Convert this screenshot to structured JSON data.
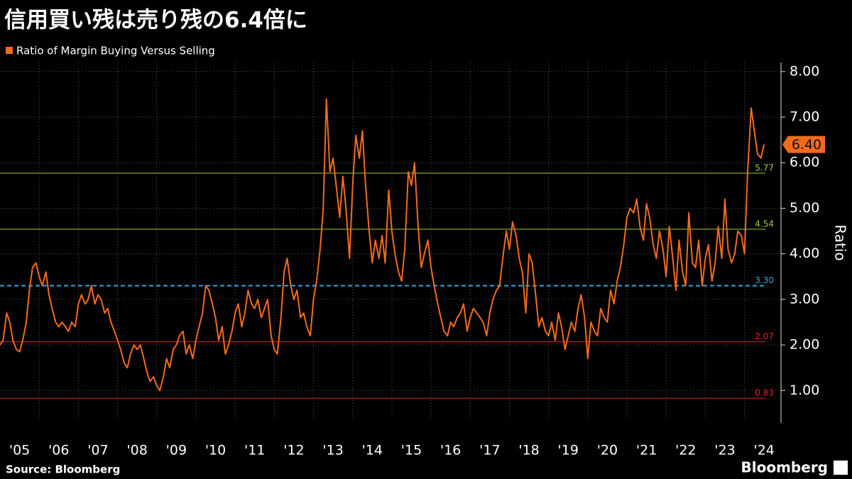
{
  "chart_data": {
    "type": "line",
    "title": "信用買い残は売り残の6.4倍に",
    "y_axis_label": "Ratio",
    "source": "Source: Bloomberg",
    "brand": "Bloomberg",
    "xlim": [
      2005,
      2024.75
    ],
    "xticks": [
      {
        "value": 2005,
        "label": "'05"
      },
      {
        "value": 2006,
        "label": "'06"
      },
      {
        "value": 2007,
        "label": "'07"
      },
      {
        "value": 2008,
        "label": "'08"
      },
      {
        "value": 2009,
        "label": "'09"
      },
      {
        "value": 2010,
        "label": "'10"
      },
      {
        "value": 2011,
        "label": "'11"
      },
      {
        "value": 2012,
        "label": "'12"
      },
      {
        "value": 2013,
        "label": "'13"
      },
      {
        "value": 2014,
        "label": "'14"
      },
      {
        "value": 2015,
        "label": "'15"
      },
      {
        "value": 2016,
        "label": "'16"
      },
      {
        "value": 2017,
        "label": "'17"
      },
      {
        "value": 2018,
        "label": "'18"
      },
      {
        "value": 2019,
        "label": "'19"
      },
      {
        "value": 2020,
        "label": "'20"
      },
      {
        "value": 2021,
        "label": "'21"
      },
      {
        "value": 2022,
        "label": "'22"
      },
      {
        "value": 2023,
        "label": "'23"
      },
      {
        "value": 2024,
        "label": "'24"
      }
    ],
    "ylim": [
      0.35,
      8.2
    ],
    "yticks": [
      {
        "value": 1,
        "label": "1.00"
      },
      {
        "value": 2,
        "label": "2.00"
      },
      {
        "value": 3,
        "label": "3.00"
      },
      {
        "value": 4,
        "label": "4.00"
      },
      {
        "value": 5,
        "label": "5.00"
      },
      {
        "value": 6,
        "label": "6.00"
      },
      {
        "value": 7,
        "label": "7.00"
      },
      {
        "value": 8,
        "label": "8.00"
      }
    ],
    "grid": true,
    "reference_lines": [
      {
        "value": 5.77,
        "label": "5.77",
        "color": "#9bd13b",
        "dashed": false
      },
      {
        "value": 4.54,
        "label": "4.54",
        "color": "#9bd13b",
        "dashed": false
      },
      {
        "value": 3.3,
        "label": "3.30",
        "color": "#29a9e0",
        "dashed": true
      },
      {
        "value": 2.07,
        "label": "2.07",
        "color": "#e0202a",
        "dashed": false
      },
      {
        "value": 0.83,
        "label": "0.83",
        "color": "#e0202a",
        "dashed": false
      }
    ],
    "last_value": {
      "value": 6.4,
      "label": "6.40"
    },
    "series": [
      {
        "name": "Ratio of Margin Buying Versus Selling",
        "color": "#f26b1d",
        "x": [
          2005,
          2005.08,
          2005.17,
          2005.25,
          2005.33,
          2005.42,
          2005.5,
          2005.58,
          2005.67,
          2005.75,
          2005.83,
          2005.92,
          2006,
          2006.08,
          2006.17,
          2006.25,
          2006.33,
          2006.42,
          2006.5,
          2006.58,
          2006.67,
          2006.75,
          2006.83,
          2006.92,
          2007,
          2007.08,
          2007.17,
          2007.25,
          2007.33,
          2007.42,
          2007.5,
          2007.58,
          2007.67,
          2007.75,
          2007.83,
          2007.92,
          2008,
          2008.08,
          2008.17,
          2008.25,
          2008.33,
          2008.42,
          2008.5,
          2008.58,
          2008.67,
          2008.75,
          2008.83,
          2008.92,
          2009,
          2009.08,
          2009.17,
          2009.25,
          2009.33,
          2009.42,
          2009.5,
          2009.58,
          2009.67,
          2009.75,
          2009.83,
          2009.92,
          2010,
          2010.08,
          2010.17,
          2010.25,
          2010.33,
          2010.42,
          2010.5,
          2010.58,
          2010.67,
          2010.75,
          2010.83,
          2010.92,
          2011,
          2011.08,
          2011.17,
          2011.25,
          2011.33,
          2011.42,
          2011.5,
          2011.58,
          2011.67,
          2011.75,
          2011.83,
          2011.92,
          2012,
          2012.08,
          2012.17,
          2012.25,
          2012.33,
          2012.42,
          2012.5,
          2012.58,
          2012.67,
          2012.75,
          2012.83,
          2012.92,
          2013,
          2013.08,
          2013.17,
          2013.25,
          2013.33,
          2013.42,
          2013.5,
          2013.58,
          2013.67,
          2013.75,
          2013.83,
          2013.92,
          2014,
          2014.08,
          2014.17,
          2014.25,
          2014.33,
          2014.42,
          2014.5,
          2014.58,
          2014.67,
          2014.75,
          2014.83,
          2014.92,
          2015,
          2015.08,
          2015.17,
          2015.25,
          2015.33,
          2015.42,
          2015.5,
          2015.58,
          2015.67,
          2015.75,
          2015.83,
          2015.92,
          2016,
          2016.08,
          2016.17,
          2016.25,
          2016.33,
          2016.42,
          2016.5,
          2016.58,
          2016.67,
          2016.75,
          2016.83,
          2016.92,
          2017,
          2017.08,
          2017.17,
          2017.25,
          2017.33,
          2017.42,
          2017.5,
          2017.58,
          2017.67,
          2017.75,
          2017.83,
          2017.92,
          2018,
          2018.08,
          2018.17,
          2018.25,
          2018.33,
          2018.42,
          2018.5,
          2018.58,
          2018.67,
          2018.75,
          2018.83,
          2018.92,
          2019,
          2019.08,
          2019.17,
          2019.25,
          2019.33,
          2019.42,
          2019.5,
          2019.58,
          2019.67,
          2019.75,
          2019.83,
          2019.92,
          2020,
          2020.08,
          2020.17,
          2020.25,
          2020.33,
          2020.42,
          2020.5,
          2020.58,
          2020.67,
          2020.75,
          2020.83,
          2020.92,
          2021,
          2021.08,
          2021.17,
          2021.25,
          2021.33,
          2021.42,
          2021.5,
          2021.58,
          2021.67,
          2021.75,
          2021.83,
          2021.92,
          2022,
          2022.08,
          2022.17,
          2022.25,
          2022.33,
          2022.42,
          2022.5,
          2022.58,
          2022.67,
          2022.75,
          2022.83,
          2022.92,
          2023,
          2023.08,
          2023.17,
          2023.25,
          2023.33,
          2023.42,
          2023.5,
          2023.58,
          2023.67,
          2023.75,
          2023.83,
          2023.92,
          2024,
          2024.08,
          2024.17,
          2024.25,
          2024.33,
          2024.42,
          2024.5
        ],
        "values": [
          2.0,
          2.1,
          2.7,
          2.5,
          2.1,
          1.9,
          1.85,
          2.1,
          2.5,
          3.2,
          3.7,
          3.8,
          3.5,
          3.3,
          3.6,
          3.1,
          2.8,
          2.5,
          2.4,
          2.5,
          2.4,
          2.3,
          2.5,
          2.4,
          2.9,
          3.1,
          2.9,
          3.0,
          3.3,
          2.9,
          3.1,
          3.0,
          2.7,
          2.8,
          2.5,
          2.3,
          2.1,
          1.9,
          1.6,
          1.5,
          1.8,
          2.0,
          1.9,
          2.0,
          1.7,
          1.4,
          1.2,
          1.3,
          1.1,
          1.0,
          1.3,
          1.7,
          1.5,
          1.9,
          2.0,
          2.2,
          2.3,
          1.8,
          2.0,
          1.7,
          2.1,
          2.4,
          2.7,
          3.3,
          3.2,
          2.9,
          2.6,
          2.1,
          2.4,
          1.8,
          2.0,
          2.3,
          2.7,
          2.9,
          2.4,
          2.7,
          3.2,
          2.9,
          2.8,
          3.0,
          2.6,
          2.8,
          3.0,
          2.2,
          1.9,
          1.8,
          2.6,
          3.6,
          3.9,
          3.3,
          3.0,
          3.2,
          2.6,
          2.7,
          2.4,
          2.2,
          3.0,
          3.4,
          4.1,
          5.0,
          7.4,
          5.8,
          6.1,
          5.5,
          4.8,
          5.7,
          5.0,
          3.9,
          5.5,
          6.6,
          6.1,
          6.7,
          5.5,
          4.5,
          3.8,
          4.3,
          3.9,
          4.4,
          3.8,
          5.4,
          4.5,
          4.0,
          3.6,
          3.4,
          4.1,
          5.8,
          5.5,
          6.0,
          4.6,
          3.7,
          4.0,
          4.3,
          3.7,
          3.3,
          2.9,
          2.6,
          2.3,
          2.2,
          2.5,
          2.4,
          2.6,
          2.7,
          2.9,
          2.3,
          2.6,
          2.8,
          2.7,
          2.6,
          2.5,
          2.2,
          2.7,
          3.0,
          3.2,
          3.3,
          3.9,
          4.5,
          4.1,
          4.7,
          4.4,
          3.9,
          3.6,
          2.7,
          4.0,
          3.8,
          3.1,
          2.4,
          2.6,
          2.3,
          2.2,
          2.5,
          2.1,
          2.7,
          2.4,
          1.9,
          2.2,
          2.5,
          2.3,
          2.8,
          3.1,
          2.6,
          1.7,
          2.5,
          2.3,
          2.2,
          2.8,
          2.6,
          2.5,
          3.2,
          2.9,
          3.4,
          3.7,
          4.2,
          4.8,
          5.0,
          4.9,
          5.2,
          4.6,
          4.3,
          5.1,
          4.8,
          4.2,
          3.9,
          4.5,
          4.1,
          3.5,
          4.6,
          3.9,
          3.2,
          4.3,
          3.6,
          3.3,
          4.9,
          3.8,
          3.7,
          4.3,
          3.3,
          3.9,
          4.2,
          3.4,
          3.8,
          4.6,
          3.9,
          5.2,
          4.1,
          3.8,
          4.0,
          4.5,
          4.4,
          4.0,
          5.8,
          7.2,
          6.7,
          6.2,
          6.1,
          6.4
        ]
      }
    ]
  }
}
